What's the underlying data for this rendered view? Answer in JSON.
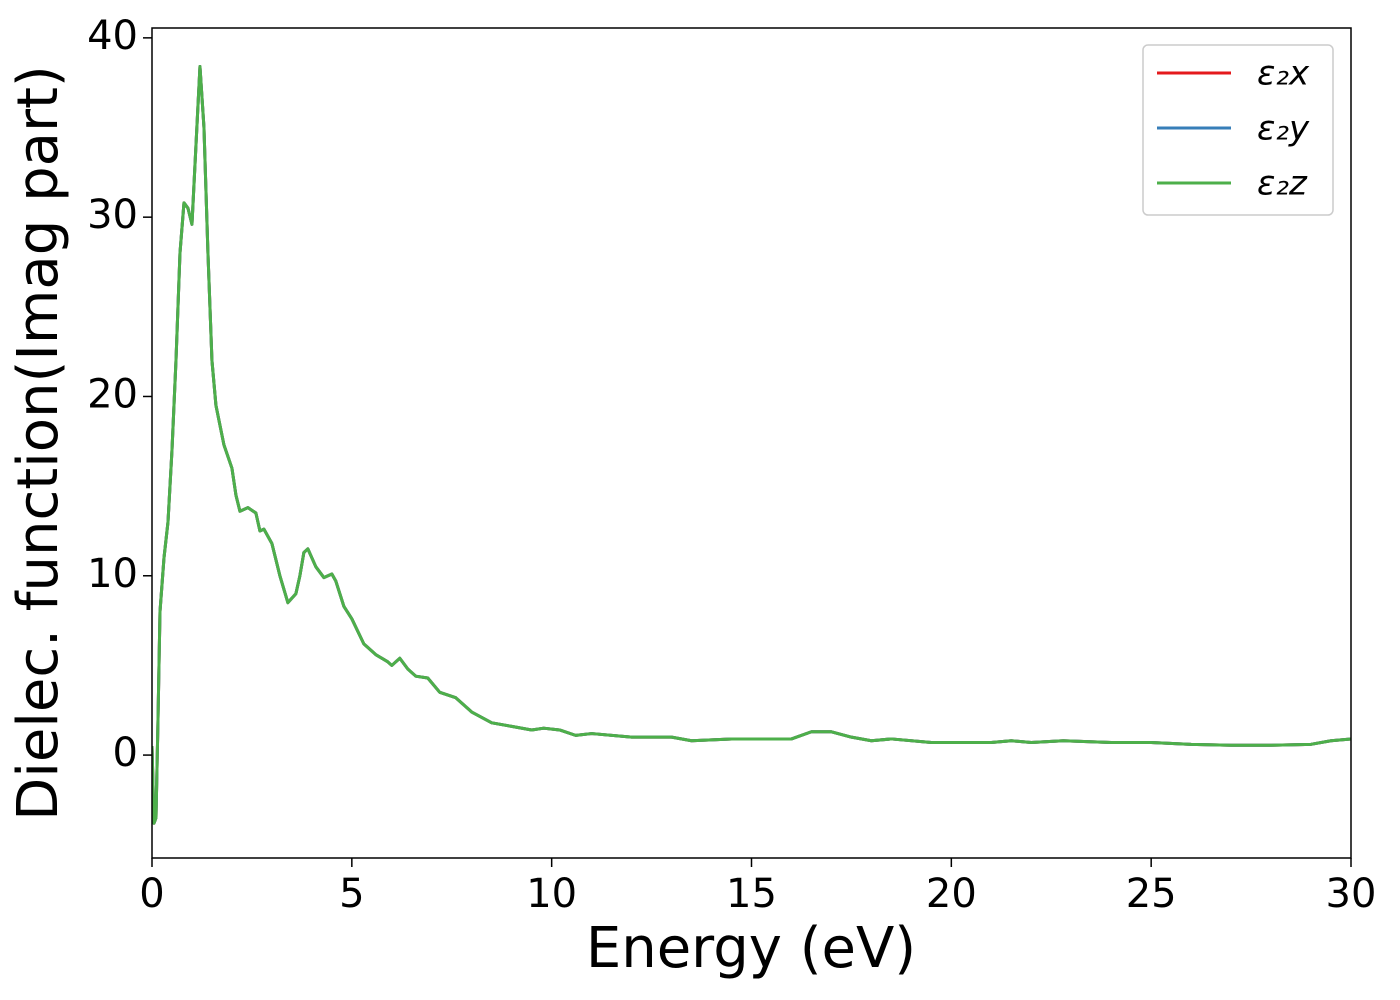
{
  "chart_data": {
    "type": "line",
    "xlabel": "Energy (eV)",
    "ylabel": "Dielec. function(Imag part)",
    "x": [
      0,
      0.05,
      0.1,
      0.15,
      0.2,
      0.3,
      0.4,
      0.5,
      0.6,
      0.7,
      0.8,
      0.9,
      1.0,
      1.1,
      1.2,
      1.3,
      1.4,
      1.5,
      1.6,
      1.8,
      2.0,
      2.1,
      2.2,
      2.4,
      2.6,
      2.7,
      2.8,
      3.0,
      3.2,
      3.4,
      3.6,
      3.7,
      3.8,
      3.9,
      4.1,
      4.3,
      4.5,
      4.6,
      4.8,
      5.0,
      5.3,
      5.6,
      5.9,
      6.0,
      6.2,
      6.4,
      6.6,
      6.9,
      7.2,
      7.6,
      8.0,
      8.5,
      9.0,
      9.5,
      9.8,
      10.2,
      10.6,
      11.0,
      12.0,
      13.0,
      13.5,
      14.5,
      15.5,
      16.0,
      16.5,
      17.0,
      17.5,
      18.0,
      18.5,
      19.5,
      21.0,
      21.5,
      22.0,
      22.8,
      24.0,
      25.0,
      26.0,
      27.0,
      28.0,
      29.0,
      29.5,
      30.0
    ],
    "series": [
      {
        "name": "ε₂x",
        "color": "#e41a1c",
        "values": [
          0.5,
          -3.8,
          -3.5,
          2,
          8,
          11,
          13,
          17,
          22,
          28,
          30.8,
          30.5,
          29.6,
          34,
          38.4,
          35,
          28,
          22,
          19.5,
          17.3,
          16,
          14.5,
          13.6,
          13.8,
          13.5,
          12.5,
          12.6,
          11.8,
          10,
          8.5,
          9,
          10,
          11.3,
          11.5,
          10.5,
          9.9,
          10.1,
          9.7,
          8.3,
          7.6,
          6.2,
          5.6,
          5.2,
          5.0,
          5.4,
          4.8,
          4.4,
          4.3,
          3.5,
          3.2,
          2.4,
          1.8,
          1.6,
          1.4,
          1.5,
          1.4,
          1.1,
          1.2,
          1.0,
          1.0,
          0.8,
          0.9,
          0.9,
          0.9,
          1.3,
          1.3,
          1.0,
          0.8,
          0.9,
          0.7,
          0.7,
          0.8,
          0.7,
          0.8,
          0.7,
          0.7,
          0.6,
          0.55,
          0.55,
          0.6,
          0.8,
          0.9
        ]
      },
      {
        "name": "ε₂y",
        "color": "#377eb8",
        "values": [
          0.5,
          -3.8,
          -3.5,
          2,
          8,
          11,
          13,
          17,
          22,
          28,
          30.8,
          30.5,
          29.6,
          34,
          38.4,
          35,
          28,
          22,
          19.5,
          17.3,
          16,
          14.5,
          13.6,
          13.8,
          13.5,
          12.5,
          12.6,
          11.8,
          10,
          8.5,
          9,
          10,
          11.3,
          11.5,
          10.5,
          9.9,
          10.1,
          9.7,
          8.3,
          7.6,
          6.2,
          5.6,
          5.2,
          5.0,
          5.4,
          4.8,
          4.4,
          4.3,
          3.5,
          3.2,
          2.4,
          1.8,
          1.6,
          1.4,
          1.5,
          1.4,
          1.1,
          1.2,
          1.0,
          1.0,
          0.8,
          0.9,
          0.9,
          0.9,
          1.3,
          1.3,
          1.0,
          0.8,
          0.9,
          0.7,
          0.7,
          0.8,
          0.7,
          0.8,
          0.7,
          0.7,
          0.6,
          0.55,
          0.55,
          0.6,
          0.8,
          0.9
        ]
      },
      {
        "name": "ε₂z",
        "color": "#4daf4a",
        "values": [
          0.5,
          -3.8,
          -3.5,
          2,
          8,
          11,
          13,
          17,
          22,
          28,
          30.8,
          30.5,
          29.6,
          34,
          38.4,
          35,
          28,
          22,
          19.5,
          17.3,
          16,
          14.5,
          13.6,
          13.8,
          13.5,
          12.5,
          12.6,
          11.8,
          10,
          8.5,
          9,
          10,
          11.3,
          11.5,
          10.5,
          9.9,
          10.1,
          9.7,
          8.3,
          7.6,
          6.2,
          5.6,
          5.2,
          5.0,
          5.4,
          4.8,
          4.4,
          4.3,
          3.5,
          3.2,
          2.4,
          1.8,
          1.6,
          1.4,
          1.5,
          1.4,
          1.1,
          1.2,
          1.0,
          1.0,
          0.8,
          0.9,
          0.9,
          0.9,
          1.3,
          1.3,
          1.0,
          0.8,
          0.9,
          0.7,
          0.7,
          0.8,
          0.7,
          0.8,
          0.7,
          0.7,
          0.6,
          0.55,
          0.55,
          0.6,
          0.8,
          0.9
        ]
      }
    ],
    "xlim": [
      0,
      30
    ],
    "xticks": [
      0,
      5,
      10,
      15,
      20,
      25,
      30
    ],
    "ylim": [
      -5.74,
      40.55
    ],
    "yticks": [
      0,
      10,
      20,
      30,
      40
    ],
    "grid": false,
    "legend": "upper right"
  }
}
